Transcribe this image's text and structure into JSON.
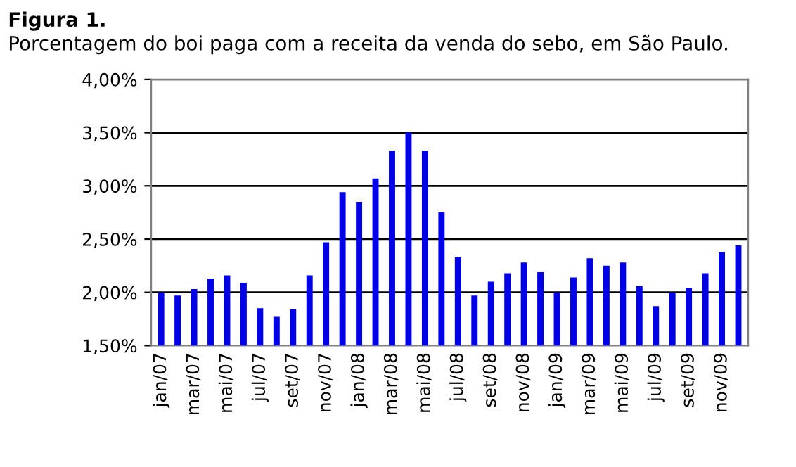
{
  "chart_data": {
    "type": "bar",
    "title": "Figura 1.",
    "subtitle": "Porcentagem do boi paga com a receita da venda do sebo, em São Paulo.",
    "categories": [
      "jan/07",
      null,
      "mar/07",
      null,
      "mai/07",
      null,
      "jul/07",
      null,
      "set/07",
      null,
      "nov/07",
      null,
      "jan/08",
      null,
      "mar/08",
      null,
      "mai/08",
      null,
      "jul/08",
      null,
      "set/08",
      null,
      "nov/08",
      null,
      "jan/09",
      null,
      "mar/09",
      null,
      "mai/09",
      null,
      "jul/09",
      null,
      "set/09",
      null,
      "nov/09",
      null
    ],
    "values": [
      2.0,
      1.97,
      2.03,
      2.13,
      2.16,
      2.09,
      1.85,
      1.77,
      1.84,
      2.16,
      2.47,
      2.94,
      2.85,
      3.07,
      3.33,
      3.5,
      3.33,
      2.75,
      2.33,
      1.97,
      2.1,
      2.18,
      2.28,
      2.19,
      2.0,
      2.14,
      2.32,
      2.25,
      2.28,
      2.06,
      1.87,
      2.0,
      2.04,
      2.18,
      2.38,
      2.44
    ],
    "color": "#0000e6",
    "ylim": [
      1.5,
      4.0
    ],
    "yticks": [
      {
        "value": 1.5,
        "label": "1,50%"
      },
      {
        "value": 2.0,
        "label": "2,00%"
      },
      {
        "value": 2.5,
        "label": "2,50%"
      },
      {
        "value": 3.0,
        "label": "3,00%"
      },
      {
        "value": 3.5,
        "label": "3,50%"
      },
      {
        "value": 4.0,
        "label": "4,00%"
      }
    ],
    "grid": "y",
    "legend": false
  }
}
